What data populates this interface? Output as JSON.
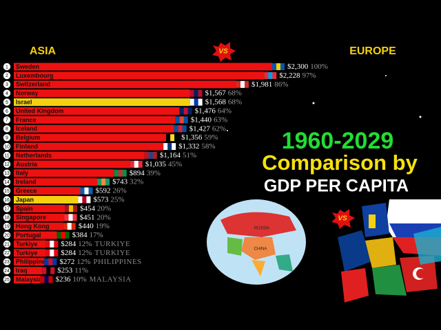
{
  "chart_data": {
    "type": "bar",
    "orientation": "horizontal",
    "left_heading": "ASIA",
    "right_heading": "EUROPE",
    "vs_badge": "VS",
    "years": "1960-2029",
    "title": "Comparison by",
    "subtitle": "GDP PER CAPITA",
    "map_labels": [
      "RUSSIA",
      "CHINA"
    ],
    "ranks": [
      1,
      2,
      3,
      4,
      5,
      6,
      7,
      8,
      9,
      10,
      11,
      12,
      13,
      14,
      15,
      16,
      17,
      18,
      19,
      20,
      21,
      22,
      23,
      24,
      25
    ],
    "categories": [
      "Sweden",
      "Luxembourg",
      "Switzerland",
      "Norway",
      "Israel",
      "United Kingdom",
      "France",
      "Iceland",
      "Belgium",
      "Finland",
      "Netherlands",
      "Austria",
      "Italy",
      "Ireland",
      "Greece",
      "Japan",
      "Spain",
      "Singapore",
      "Hong Kong",
      "Portugal",
      "Turkiye",
      "Turkiye",
      "Philippines",
      "Iraq",
      "Malaysia"
    ],
    "tags": [
      null,
      null,
      null,
      null,
      null,
      null,
      null,
      null,
      null,
      null,
      null,
      null,
      null,
      null,
      null,
      null,
      null,
      null,
      null,
      null,
      "TURKIYE",
      "TURKIYE",
      "PHILIPPINES",
      null,
      "MALAYSIA"
    ],
    "values": [
      2300,
      2228,
      1981,
      1567,
      1568,
      1476,
      1440,
      1427,
      1356,
      1332,
      1164,
      1035,
      894,
      743,
      592,
      573,
      454,
      451,
      440,
      384,
      284,
      284,
      272,
      253,
      236
    ],
    "value_labels": [
      "$2,300",
      "$2,228",
      "$1,981",
      "$1,567",
      "$1,568",
      "$1,476",
      "$1,440",
      "$1,427",
      "$1,356",
      "$1,332",
      "$1,164",
      "$1,035",
      "$894",
      "$743",
      "$592",
      "$573",
      "$454",
      "$451",
      "$440",
      "$384",
      "$284",
      "$284",
      "$272",
      "$253",
      "$236"
    ],
    "shares": [
      100,
      97,
      86,
      68,
      68,
      64,
      63,
      62,
      59,
      58,
      51,
      45,
      39,
      32,
      26,
      25,
      20,
      20,
      19,
      17,
      12,
      12,
      12,
      11,
      10
    ],
    "share_labels": [
      "100%",
      "97%",
      "86%",
      "68%",
      "68%",
      "64%",
      "63%",
      "62%",
      "59%",
      "58%",
      "51%",
      "45%",
      "39%",
      "32%",
      "26%",
      "25%",
      "20%",
      "20%",
      "19%",
      "17%",
      "12%",
      "12%",
      "12%",
      "11%",
      "10%"
    ],
    "colors": [
      "#ee1111",
      "#ee1111",
      "#ee1111",
      "#ee1111",
      "#f5d010",
      "#ee1111",
      "#ee1111",
      "#ee1111",
      "#ee1111",
      "#ee1111",
      "#ee1111",
      "#ee1111",
      "#ee1111",
      "#ee1111",
      "#ee1111",
      "#f5d010",
      "#ee1111",
      "#ee1111",
      "#ee1111",
      "#ee1111",
      "#ee1111",
      "#ee1111",
      "#ee1111",
      "#ee1111",
      "#ee1111"
    ],
    "xlim": [
      0,
      2300
    ]
  }
}
